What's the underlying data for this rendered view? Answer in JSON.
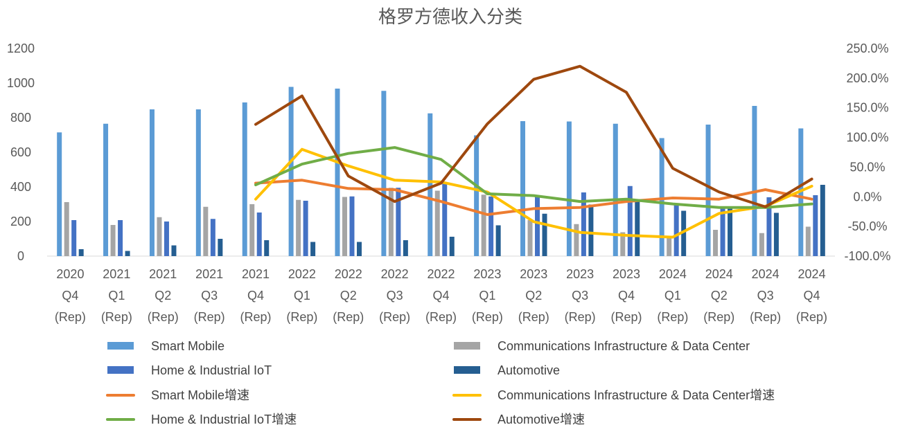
{
  "chart_data": {
    "type": "bar+line",
    "title": "格罗方德收入分类",
    "categories": [
      [
        "2020",
        "Q4",
        "(Rep)"
      ],
      [
        "2021",
        "Q1",
        "(Rep)"
      ],
      [
        "2021",
        "Q2",
        "(Rep)"
      ],
      [
        "2021",
        "Q3",
        "(Rep)"
      ],
      [
        "2021",
        "Q4",
        "(Rep)"
      ],
      [
        "2022",
        "Q1",
        "(Rep)"
      ],
      [
        "2022",
        "Q2",
        "(Rep)"
      ],
      [
        "2022",
        "Q3",
        "(Rep)"
      ],
      [
        "2022",
        "Q4",
        "(Rep)"
      ],
      [
        "2023",
        "Q1",
        "(Rep)"
      ],
      [
        "2023",
        "Q2",
        "(Rep)"
      ],
      [
        "2023",
        "Q3",
        "(Rep)"
      ],
      [
        "2023",
        "Q4",
        "(Rep)"
      ],
      [
        "2024",
        "Q1",
        "(Rep)"
      ],
      [
        "2024",
        "Q2",
        "(Rep)"
      ],
      [
        "2024",
        "Q3",
        "(Rep)"
      ],
      [
        "2024",
        "Q4",
        "(Rep)"
      ]
    ],
    "left_axis": {
      "min": 0,
      "max": 1200,
      "step": 200,
      "ticks": [
        "0",
        "200",
        "400",
        "600",
        "800",
        "1000",
        "1200"
      ]
    },
    "right_axis": {
      "min": -100,
      "max": 250,
      "step": 50,
      "ticks": [
        "-100.0%",
        "-50.0%",
        "0.0%",
        "50.0%",
        "100.0%",
        "150.0%",
        "200.0%",
        "250.0%"
      ]
    },
    "bar_series": [
      {
        "name": "Smart Mobile",
        "color": "#5B9BD5",
        "values": [
          715,
          765,
          848,
          848,
          888,
          978,
          968,
          955,
          825,
          698,
          780,
          778,
          765,
          682,
          760,
          868,
          738
        ]
      },
      {
        "name": "Communications Infrastructure & Data Center",
        "color": "#A5A5A5",
        "values": [
          312,
          180,
          225,
          285,
          300,
          325,
          342,
          395,
          378,
          355,
          208,
          185,
          138,
          115,
          152,
          133,
          170
        ]
      },
      {
        "name": "Home & Industrial IoT",
        "color": "#4472C4",
        "values": [
          208,
          208,
          200,
          215,
          252,
          320,
          345,
          395,
          418,
          345,
          350,
          368,
          405,
          300,
          282,
          340,
          352
        ]
      },
      {
        "name": "Automotive",
        "color": "#255E91",
        "values": [
          40,
          30,
          62,
          100,
          92,
          82,
          82,
          92,
          112,
          178,
          245,
          298,
          328,
          262,
          280,
          250,
          412
        ]
      }
    ],
    "line_series": [
      {
        "name": "Smart Mobile增速",
        "color": "#ED7D31",
        "start_index": 4,
        "values": [
          null,
          null,
          null,
          null,
          23,
          28,
          14,
          12,
          -8,
          -30,
          -20,
          -18,
          -8,
          -2,
          -4,
          12,
          -4
        ]
      },
      {
        "name": "Communications Infrastructure & Data Center增速",
        "color": "#FFC000",
        "start_index": 4,
        "values": [
          null,
          null,
          null,
          null,
          -4,
          80,
          52,
          28,
          25,
          8,
          -42,
          -60,
          -65,
          -68,
          -28,
          -16,
          18
        ]
      },
      {
        "name": "Home & Industrial IoT增速",
        "color": "#70AD47",
        "start_index": 4,
        "values": [
          null,
          null,
          null,
          null,
          20,
          55,
          73,
          83,
          63,
          5,
          2,
          -8,
          -4,
          -12,
          -18,
          -18,
          -12
        ]
      },
      {
        "name": "Automotive增速",
        "color": "#9E480E",
        "start_index": 4,
        "values": [
          null,
          null,
          null,
          null,
          122,
          170,
          35,
          -8,
          23,
          123,
          198,
          220,
          176,
          48,
          8,
          -17,
          30
        ]
      }
    ],
    "legend": [
      {
        "label": "Smart Mobile",
        "kind": "bar",
        "color": "#5B9BD5"
      },
      {
        "label": "Communications Infrastructure & Data Center",
        "kind": "bar",
        "color": "#A5A5A5"
      },
      {
        "label": "Home & Industrial IoT",
        "kind": "bar",
        "color": "#4472C4"
      },
      {
        "label": "Automotive",
        "kind": "bar",
        "color": "#255E91"
      },
      {
        "label": "Smart Mobile增速",
        "kind": "line",
        "color": "#ED7D31"
      },
      {
        "label": "Communications Infrastructure & Data Center增速",
        "kind": "line",
        "color": "#FFC000"
      },
      {
        "label": "Home & Industrial IoT增速",
        "kind": "line",
        "color": "#70AD47"
      },
      {
        "label": "Automotive增速",
        "kind": "line",
        "color": "#9E480E"
      }
    ],
    "legend_position": "bottom",
    "grid": false
  }
}
